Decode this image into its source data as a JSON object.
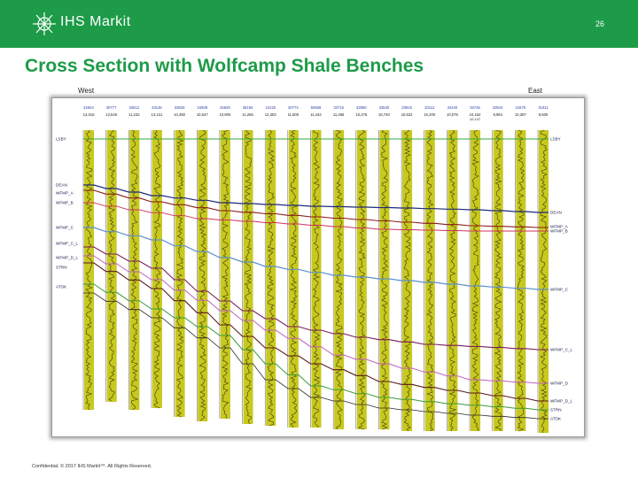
{
  "header": {
    "logo_text": "IHS Markit",
    "page_number": "26"
  },
  "title": "Cross Section with Wolfcamp Shale Benches",
  "directions": {
    "west": "West",
    "east": "East"
  },
  "wells": [
    {
      "id": "32604",
      "depth": "13,316"
    },
    {
      "id": "30777",
      "depth": "12,540"
    },
    {
      "id": "33612",
      "depth": "11,232"
    },
    {
      "id": "33146",
      "depth": "13,131"
    },
    {
      "id": "33828",
      "depth": "10,350"
    },
    {
      "id": "34939",
      "depth": "10,537"
    },
    {
      "id": "34629",
      "depth": "10,900"
    },
    {
      "id": "35194",
      "depth": "11,265"
    },
    {
      "id": "10125",
      "depth": "12,303"
    },
    {
      "id": "30774",
      "depth": "11,500"
    },
    {
      "id": "50558",
      "depth": "11,442"
    },
    {
      "id": "33716",
      "depth": "11,266"
    },
    {
      "id": "33850",
      "depth": "10,276"
    },
    {
      "id": "33530",
      "depth": "10,740"
    },
    {
      "id": "33916",
      "depth": "10,622"
    },
    {
      "id": "33112",
      "depth": "10,200"
    },
    {
      "id": "34440",
      "depth": "10,075"
    },
    {
      "id": "33746",
      "depth": "10,152"
    },
    {
      "id": "33910",
      "depth": "9,964"
    },
    {
      "id": "31675",
      "depth": "10,387"
    },
    {
      "id": "31911",
      "depth": "9,500"
    }
  ],
  "extra_depth": "10,147",
  "left_markers": [
    "LSBY",
    "DEAN",
    "WFMP_A",
    "WFMP_B",
    "WFMP_C",
    "WFMP_C_L",
    "WFMP_D_L",
    "STRN",
    "ATOK"
  ],
  "right_markers": [
    "LSBY",
    "DEAN",
    "WFMP_A",
    "WFMP_B",
    "WFMP_C",
    "WFMP_C_L",
    "WFMP_D",
    "WFMP_D_L",
    "STRN",
    "ATOK"
  ],
  "colors": {
    "header_green": "#1d9b48",
    "log_yellow": "#c8c81e",
    "lsby": "#3aa53a",
    "dean": "#1f2a7a",
    "wfmp_a": "#8b1a1a",
    "wfmp_b": "#d03060",
    "wfmp_c": "#5b8fd0",
    "wfmp_c_l": "#7a1a5a",
    "wfmp_d": "#c060c0",
    "wfmp_d_l": "#5a1a1a",
    "strn": "#3a9a3a",
    "atok": "#2a2a2a"
  },
  "footer": "Confidential. © 2017 IHS Markit™. All Rights Reserved."
}
